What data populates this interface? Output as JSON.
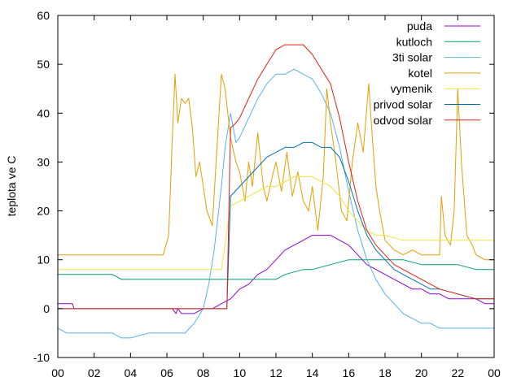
{
  "chart_data": {
    "type": "line",
    "title": "",
    "xlabel": "",
    "ylabel": "teplota ve C",
    "xlim": [
      0,
      24
    ],
    "ylim": [
      -10,
      60
    ],
    "x_ticks": [
      "00",
      "02",
      "04",
      "06",
      "08",
      "10",
      "12",
      "14",
      "16",
      "18",
      "20",
      "22",
      "00"
    ],
    "y_ticks": [
      "60",
      "50",
      "40",
      "30",
      "20",
      "10",
      "0",
      "-10"
    ],
    "grid": false,
    "legend_position": "top-right",
    "series": [
      {
        "name": "puda",
        "color": "#9400d3",
        "x": [
          0,
          0.8,
          0.9,
          1.0,
          6.3,
          6.5,
          6.6,
          6.8,
          7.0,
          7.5,
          8.0,
          8.5,
          9.0,
          9.5,
          10.0,
          10.5,
          11.0,
          11.5,
          12.0,
          12.5,
          13.0,
          13.5,
          14.0,
          14.5,
          15.0,
          15.5,
          16.0,
          16.5,
          17.0,
          17.5,
          18.0,
          18.5,
          19.0,
          19.5,
          20.0,
          20.5,
          21.0,
          21.5,
          22.0,
          22.5,
          23.0,
          23.5,
          24.0
        ],
        "y": [
          1,
          1,
          0,
          0,
          0,
          -1,
          0,
          -1,
          -1,
          -1,
          0,
          0,
          1,
          2,
          4,
          5,
          7,
          8,
          10,
          12,
          13,
          14,
          15,
          15,
          15,
          14,
          13,
          11,
          9,
          8,
          7,
          6,
          5,
          4,
          4,
          3,
          3,
          2,
          2,
          2,
          2,
          1,
          1
        ]
      },
      {
        "name": "kutloch",
        "color": "#009e73",
        "x": [
          0,
          3.0,
          3.5,
          6.0,
          9.0,
          10.0,
          11.0,
          12.0,
          12.5,
          13.5,
          14.0,
          15.0,
          16.0,
          18.0,
          19.0,
          20.0,
          21.0,
          22.0,
          23.0,
          24.0
        ],
        "y": [
          7,
          7,
          6,
          6,
          6,
          6,
          6,
          6,
          7,
          8,
          8,
          9,
          10,
          10,
          10,
          9,
          9,
          9,
          8,
          8
        ]
      },
      {
        "name": "3ti solar",
        "color": "#56b4e9",
        "x": [
          0,
          0.5,
          3.0,
          3.5,
          4.0,
          5.0,
          6.0,
          7.0,
          7.5,
          8.0,
          8.3,
          8.6,
          9.0,
          9.2,
          9.5,
          9.8,
          10.0,
          10.5,
          11.0,
          11.5,
          12.0,
          12.5,
          13.0,
          13.5,
          14.0,
          14.5,
          15.0,
          15.5,
          16.0,
          16.5,
          17.0,
          17.5,
          18.0,
          18.5,
          19.0,
          19.5,
          20.0,
          20.5,
          21.0,
          22.0,
          23.0,
          24.0
        ],
        "y": [
          -4,
          -5,
          -5,
          -6,
          -6,
          -5,
          -5,
          -5,
          -3,
          0,
          5,
          12,
          25,
          33,
          40,
          34,
          35,
          39,
          43,
          46,
          48,
          48,
          49,
          48,
          47,
          44,
          40,
          33,
          24,
          16,
          10,
          6,
          3,
          1,
          -1,
          -2,
          -3,
          -3,
          -4,
          -4,
          -4,
          -4
        ]
      },
      {
        "name": "kotel",
        "color": "#e69f00",
        "x": [
          0,
          1.0,
          2.0,
          3.0,
          4.0,
          5.0,
          5.8,
          6.1,
          6.3,
          6.45,
          6.6,
          6.8,
          7.0,
          7.2,
          7.4,
          7.6,
          7.8,
          8.0,
          8.2,
          8.5,
          9.0,
          9.2,
          9.5,
          9.8,
          10.0,
          10.3,
          10.5,
          10.7,
          11.0,
          11.3,
          11.5,
          11.8,
          12.0,
          12.3,
          12.6,
          12.9,
          13.2,
          13.5,
          13.8,
          14.0,
          14.3,
          14.6,
          14.8,
          15.0,
          15.3,
          15.6,
          15.9,
          16.2,
          16.5,
          16.8,
          17.1,
          17.3,
          17.5,
          17.7,
          18.0,
          18.5,
          19.0,
          19.5,
          20.0,
          20.5,
          21.0,
          21.1,
          21.3,
          21.6,
          21.8,
          22.0,
          22.2,
          22.5,
          22.8,
          23.0,
          23.5,
          24.0
        ],
        "y": [
          11,
          11,
          11,
          11,
          11,
          11,
          11,
          15,
          35,
          48,
          38,
          43,
          42,
          43,
          37,
          27,
          30,
          25,
          20,
          17,
          48,
          45,
          35,
          30,
          28,
          22,
          30,
          25,
          36,
          25,
          22,
          27,
          30,
          24,
          32,
          23,
          28,
          22,
          20,
          25,
          16,
          27,
          45,
          38,
          30,
          20,
          18,
          30,
          38,
          32,
          46,
          35,
          25,
          20,
          14,
          12,
          11,
          12,
          11,
          11,
          11,
          23,
          15,
          13,
          20,
          45,
          30,
          15,
          13,
          11,
          10,
          10
        ]
      },
      {
        "name": "vymenik",
        "color": "#f0e442",
        "x": [
          0,
          8.0,
          9.0,
          9.5,
          10.0,
          10.5,
          11.0,
          11.5,
          12.0,
          12.5,
          13.0,
          13.5,
          14.0,
          14.5,
          15.0,
          15.5,
          16.0,
          16.5,
          17.0,
          17.5,
          18.0,
          19.0,
          20.0,
          21.0,
          22.0,
          23.0,
          24.0
        ],
        "y": [
          8,
          8,
          8,
          21,
          22,
          23,
          24,
          25,
          25,
          26,
          27,
          27,
          27,
          26,
          25,
          23,
          20,
          18,
          16,
          15,
          15,
          14,
          14,
          14,
          14,
          14,
          14
        ]
      },
      {
        "name": "privod solar",
        "color": "#0072b2",
        "x": [
          0,
          9.0,
          9.3,
          9.5,
          10.0,
          10.5,
          11.0,
          11.5,
          12.0,
          12.5,
          13.0,
          13.5,
          14.0,
          14.5,
          15.0,
          15.5,
          16.0,
          16.5,
          17.0,
          17.5,
          18.0,
          18.5,
          19.0,
          19.5,
          20.0,
          20.5,
          21.0,
          22.0,
          23.0,
          24.0
        ],
        "y": [
          0,
          0,
          0,
          23,
          25,
          27,
          29,
          31,
          32,
          33,
          33,
          34,
          34,
          33,
          33,
          31,
          26,
          20,
          15,
          12,
          10,
          8,
          7,
          6,
          5,
          4,
          4,
          3,
          2,
          2
        ]
      },
      {
        "name": "odvod solar",
        "color": "#e51e10",
        "x": [
          0,
          9.0,
          9.3,
          9.5,
          9.8,
          10.0,
          10.5,
          11.0,
          11.5,
          12.0,
          12.5,
          13.0,
          13.5,
          14.0,
          14.5,
          15.0,
          15.5,
          16.0,
          16.5,
          17.0,
          17.5,
          18.0,
          18.5,
          19.0,
          19.5,
          20.0,
          20.5,
          21.0,
          22.0,
          23.0,
          24.0
        ],
        "y": [
          0,
          0,
          0,
          37,
          38,
          39,
          43,
          47,
          50,
          53,
          54,
          54,
          54,
          52,
          49,
          46,
          39,
          30,
          22,
          16,
          13,
          11,
          9,
          8,
          7,
          6,
          5,
          4,
          3,
          2,
          2
        ]
      }
    ]
  }
}
